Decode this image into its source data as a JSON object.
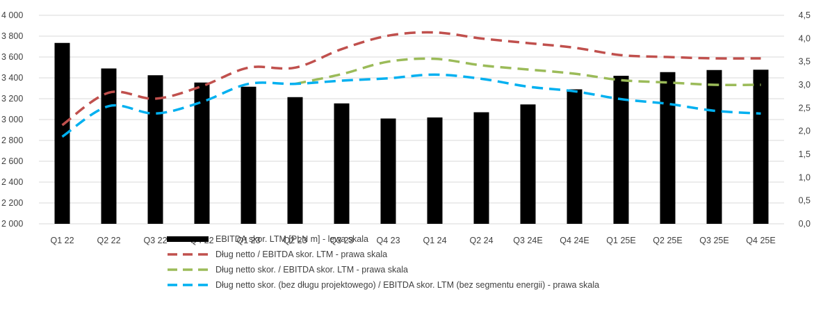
{
  "chart_data": {
    "type": "bar",
    "categories": [
      "Q1 22",
      "Q2 22",
      "Q3 22",
      "Q4 22",
      "Q1 23",
      "Q2 23",
      "Q3 23",
      "Q4 23",
      "Q1 24",
      "Q2 24",
      "Q3 24E",
      "Q4 24E",
      "Q1 25E",
      "Q2 25E",
      "Q3 25E",
      "Q4 25E"
    ],
    "left_axis": {
      "min": 2000,
      "max": 4000,
      "step": 200,
      "tick_labels": [
        "2 000",
        "2 200",
        "2 400",
        "2 600",
        "2 800",
        "3 000",
        "3 200",
        "3 400",
        "3 600",
        "3 800",
        "4 000"
      ]
    },
    "right_axis": {
      "min": 0,
      "max": 4.5,
      "step": 0.5,
      "tick_labels": [
        "0,0",
        "0,5",
        "1,0",
        "1,5",
        "2,0",
        "2,5",
        "3,0",
        "3,5",
        "4,0",
        "4,5"
      ]
    },
    "grid": true,
    "legend_position": "bottom",
    "series": [
      {
        "name": "EBITDA skor. LTM [PLN m] - lewa skala",
        "type": "bar",
        "axis": "left",
        "color": "#000000",
        "values": [
          3735,
          3490,
          3425,
          3355,
          3315,
          3215,
          3155,
          3010,
          3020,
          3070,
          3145,
          3290,
          3420,
          3455,
          3475,
          3478
        ]
      },
      {
        "name": "Dług netto / EBITDA skor. LTM  - prawa skala",
        "type": "line",
        "axis": "right",
        "color": "#C0504D",
        "dash": "long",
        "values": [
          2.13,
          2.83,
          2.7,
          2.97,
          3.37,
          3.37,
          3.77,
          4.06,
          4.13,
          4.0,
          3.9,
          3.8,
          3.64,
          3.6,
          3.57,
          3.57
        ]
      },
      {
        "name": "Dług netto skor. / EBITDA skor. LTM - prawa skala",
        "type": "line",
        "axis": "right",
        "color": "#9BBB59",
        "dash": "long",
        "start_index": 5,
        "values": [
          null,
          null,
          null,
          null,
          null,
          3.02,
          3.23,
          3.5,
          3.56,
          3.42,
          3.33,
          3.24,
          3.1,
          3.05,
          3.0,
          3.0
        ]
      },
      {
        "name": "Dług netto skor. (bez długu projektowego) / EBITDA skor. LTM (bez segmentu energii) - prawa skala",
        "type": "line",
        "axis": "right",
        "color": "#00B0F0",
        "dash": "long",
        "values": [
          1.88,
          2.54,
          2.38,
          2.63,
          3.02,
          3.02,
          3.09,
          3.14,
          3.22,
          3.13,
          2.96,
          2.86,
          2.69,
          2.59,
          2.44,
          2.38
        ]
      }
    ]
  }
}
